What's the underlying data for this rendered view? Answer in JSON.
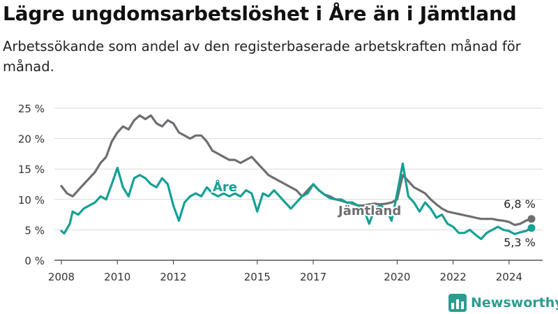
{
  "title": "Lägre ungdomsarbetslöshet i Åre än i Jämtland",
  "subtitle": "Arbetssökande som andel av den registerbaserade arbetskraften månad för månad.",
  "brand": {
    "name": "Newsworthy"
  },
  "colors": {
    "jamtland": "#6e6e72",
    "are": "#14a095",
    "grid": "#d9d9d9",
    "axis": "#333333",
    "brand": "#2a9d8f"
  },
  "chart_data": {
    "type": "line",
    "title": "Lägre ungdomsarbetslöshet i Åre än i Jämtland",
    "ylabel": "",
    "xlabel": "",
    "ylim": [
      0,
      25
    ],
    "xlim": [
      2007.75,
      2025.2
    ],
    "y_ticks": [
      0,
      5,
      10,
      15,
      20,
      25
    ],
    "y_tick_labels": [
      "0 %",
      "5 %",
      "10 %",
      "15 %",
      "20 %",
      "25 %"
    ],
    "x_ticks": [
      2008,
      2010,
      2012,
      2015,
      2017,
      2020,
      2022,
      2024
    ],
    "x_tick_labels": [
      "2008",
      "2010",
      "2012",
      "2015",
      "2017",
      "2020",
      "2022",
      "2024"
    ],
    "grid": true,
    "series": [
      {
        "name": "Jämtland",
        "end_label": "6,8 %",
        "points": [
          [
            2008.0,
            12.2
          ],
          [
            2008.2,
            11.0
          ],
          [
            2008.4,
            10.5
          ],
          [
            2008.6,
            11.5
          ],
          [
            2008.8,
            12.5
          ],
          [
            2009.0,
            13.5
          ],
          [
            2009.2,
            14.5
          ],
          [
            2009.4,
            16.0
          ],
          [
            2009.6,
            17.0
          ],
          [
            2009.8,
            19.5
          ],
          [
            2010.0,
            21.0
          ],
          [
            2010.2,
            22.0
          ],
          [
            2010.4,
            21.5
          ],
          [
            2010.6,
            23.0
          ],
          [
            2010.8,
            23.8
          ],
          [
            2011.0,
            23.2
          ],
          [
            2011.2,
            23.8
          ],
          [
            2011.4,
            22.5
          ],
          [
            2011.6,
            22.0
          ],
          [
            2011.8,
            23.0
          ],
          [
            2012.0,
            22.5
          ],
          [
            2012.2,
            21.0
          ],
          [
            2012.4,
            20.5
          ],
          [
            2012.6,
            20.0
          ],
          [
            2012.8,
            20.5
          ],
          [
            2013.0,
            20.5
          ],
          [
            2013.2,
            19.5
          ],
          [
            2013.4,
            18.0
          ],
          [
            2013.6,
            17.5
          ],
          [
            2013.8,
            17.0
          ],
          [
            2014.0,
            16.5
          ],
          [
            2014.2,
            16.5
          ],
          [
            2014.4,
            16.0
          ],
          [
            2014.6,
            16.5
          ],
          [
            2014.8,
            17.0
          ],
          [
            2015.0,
            16.0
          ],
          [
            2015.2,
            15.0
          ],
          [
            2015.4,
            14.0
          ],
          [
            2015.6,
            13.5
          ],
          [
            2015.8,
            13.0
          ],
          [
            2016.0,
            12.5
          ],
          [
            2016.2,
            12.0
          ],
          [
            2016.4,
            11.5
          ],
          [
            2016.6,
            10.5
          ],
          [
            2016.8,
            11.5
          ],
          [
            2017.0,
            12.5
          ],
          [
            2017.2,
            11.5
          ],
          [
            2017.4,
            10.8
          ],
          [
            2017.6,
            10.5
          ],
          [
            2017.8,
            10.0
          ],
          [
            2018.0,
            9.8
          ],
          [
            2018.2,
            9.5
          ],
          [
            2018.4,
            9.3
          ],
          [
            2018.6,
            9.0
          ],
          [
            2018.8,
            9.0
          ],
          [
            2019.0,
            9.2
          ],
          [
            2019.2,
            9.3
          ],
          [
            2019.4,
            9.2
          ],
          [
            2019.6,
            9.3
          ],
          [
            2019.8,
            9.5
          ],
          [
            2020.0,
            10.0
          ],
          [
            2020.2,
            14.0
          ],
          [
            2020.4,
            13.0
          ],
          [
            2020.6,
            12.0
          ],
          [
            2020.8,
            11.5
          ],
          [
            2021.0,
            11.0
          ],
          [
            2021.2,
            10.0
          ],
          [
            2021.4,
            9.2
          ],
          [
            2021.6,
            8.5
          ],
          [
            2021.8,
            8.0
          ],
          [
            2022.0,
            7.8
          ],
          [
            2022.2,
            7.6
          ],
          [
            2022.4,
            7.4
          ],
          [
            2022.6,
            7.2
          ],
          [
            2022.8,
            7.0
          ],
          [
            2023.0,
            6.8
          ],
          [
            2023.2,
            6.8
          ],
          [
            2023.4,
            6.8
          ],
          [
            2023.6,
            6.6
          ],
          [
            2023.8,
            6.5
          ],
          [
            2024.0,
            6.3
          ],
          [
            2024.2,
            5.8
          ],
          [
            2024.4,
            6.0
          ],
          [
            2024.6,
            6.5
          ],
          [
            2024.8,
            6.8
          ]
        ]
      },
      {
        "name": "Åre",
        "end_label": "5,3 %",
        "points": [
          [
            2008.0,
            4.8
          ],
          [
            2008.1,
            4.4
          ],
          [
            2008.3,
            6.0
          ],
          [
            2008.4,
            8.0
          ],
          [
            2008.6,
            7.5
          ],
          [
            2008.8,
            8.5
          ],
          [
            2009.0,
            9.0
          ],
          [
            2009.2,
            9.5
          ],
          [
            2009.4,
            10.5
          ],
          [
            2009.6,
            10.0
          ],
          [
            2009.8,
            12.5
          ],
          [
            2010.0,
            15.2
          ],
          [
            2010.2,
            12.0
          ],
          [
            2010.4,
            10.5
          ],
          [
            2010.6,
            13.5
          ],
          [
            2010.8,
            14.0
          ],
          [
            2011.0,
            13.5
          ],
          [
            2011.2,
            12.5
          ],
          [
            2011.4,
            12.0
          ],
          [
            2011.6,
            13.5
          ],
          [
            2011.8,
            12.5
          ],
          [
            2012.0,
            9.0
          ],
          [
            2012.2,
            6.5
          ],
          [
            2012.4,
            9.5
          ],
          [
            2012.6,
            10.5
          ],
          [
            2012.8,
            11.0
          ],
          [
            2013.0,
            10.5
          ],
          [
            2013.2,
            12.0
          ],
          [
            2013.4,
            11.0
          ],
          [
            2013.6,
            10.5
          ],
          [
            2013.8,
            11.0
          ],
          [
            2014.0,
            10.5
          ],
          [
            2014.2,
            11.0
          ],
          [
            2014.4,
            10.5
          ],
          [
            2014.6,
            11.5
          ],
          [
            2014.8,
            11.0
          ],
          [
            2015.0,
            8.0
          ],
          [
            2015.2,
            11.0
          ],
          [
            2015.4,
            10.5
          ],
          [
            2015.6,
            11.5
          ],
          [
            2015.8,
            10.5
          ],
          [
            2016.0,
            9.5
          ],
          [
            2016.2,
            8.5
          ],
          [
            2016.4,
            9.5
          ],
          [
            2016.6,
            10.5
          ],
          [
            2016.8,
            11.0
          ],
          [
            2017.0,
            12.5
          ],
          [
            2017.2,
            11.5
          ],
          [
            2017.4,
            10.8
          ],
          [
            2017.6,
            10.2
          ],
          [
            2017.8,
            10.0
          ],
          [
            2018.0,
            10.0
          ],
          [
            2018.2,
            9.5
          ],
          [
            2018.4,
            9.5
          ],
          [
            2018.6,
            9.0
          ],
          [
            2018.8,
            8.5
          ],
          [
            2019.0,
            6.0
          ],
          [
            2019.2,
            8.5
          ],
          [
            2019.4,
            9.0
          ],
          [
            2019.6,
            8.5
          ],
          [
            2019.8,
            6.5
          ],
          [
            2020.0,
            11.0
          ],
          [
            2020.2,
            15.9
          ],
          [
            2020.4,
            10.5
          ],
          [
            2020.6,
            9.5
          ],
          [
            2020.8,
            8.0
          ],
          [
            2021.0,
            9.5
          ],
          [
            2021.2,
            8.5
          ],
          [
            2021.4,
            7.0
          ],
          [
            2021.6,
            7.5
          ],
          [
            2021.8,
            6.0
          ],
          [
            2022.0,
            5.5
          ],
          [
            2022.2,
            4.5
          ],
          [
            2022.4,
            4.5
          ],
          [
            2022.6,
            5.0
          ],
          [
            2022.8,
            4.2
          ],
          [
            2023.0,
            3.5
          ],
          [
            2023.2,
            4.5
          ],
          [
            2023.4,
            5.0
          ],
          [
            2023.6,
            5.5
          ],
          [
            2023.8,
            5.0
          ],
          [
            2024.0,
            4.8
          ],
          [
            2024.2,
            4.3
          ],
          [
            2024.4,
            4.6
          ],
          [
            2024.6,
            4.8
          ],
          [
            2024.8,
            5.3
          ]
        ]
      }
    ]
  }
}
